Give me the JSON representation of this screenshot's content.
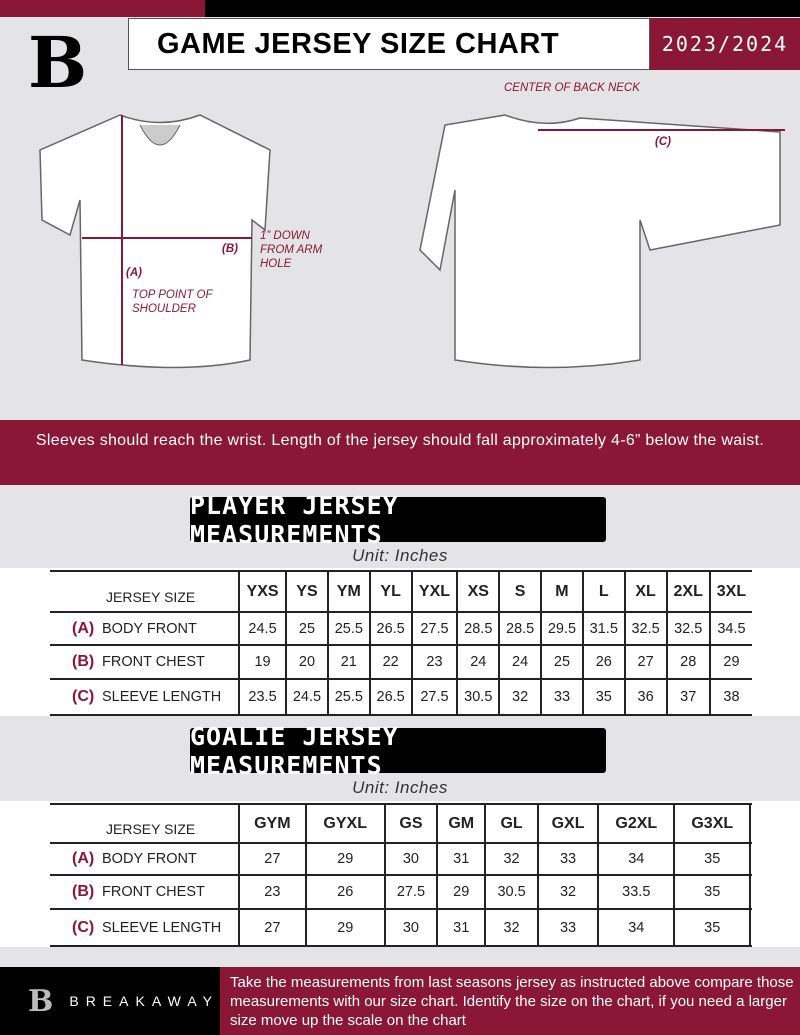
{
  "header": {
    "title": "GAME JERSEY SIZE CHART",
    "season": "2023/2024",
    "logo": "B"
  },
  "diagram": {
    "center_back_neck": "CENTER OF BACK NECK",
    "label_a": "(A)",
    "label_b": "(B)",
    "label_c": "(C)",
    "top_point": "TOP POINT OF SHOULDER",
    "down_from_arm": "1” DOWN FROM ARM HOLE"
  },
  "instruction_band": "Sleeves should reach the wrist. Length of the jersey should fall approximately 4-6” below the waist.",
  "player": {
    "title": "PLAYER JERSEY MEASUREMENTS",
    "unit": "Unit: Inches",
    "size_header": "JERSEY SIZE",
    "sizes": [
      "YXS",
      "YS",
      "YM",
      "YL",
      "YXL",
      "XS",
      "S",
      "M",
      "L",
      "XL",
      "2XL",
      "3XL"
    ],
    "rows": [
      {
        "code": "(A)",
        "label": "BODY FRONT",
        "values": [
          "24.5",
          "25",
          "25.5",
          "26.5",
          "27.5",
          "28.5",
          "28.5",
          "29.5",
          "31.5",
          "32.5",
          "32.5",
          "34.5"
        ]
      },
      {
        "code": "(B)",
        "label": "FRONT CHEST",
        "values": [
          "19",
          "20",
          "21",
          "22",
          "23",
          "24",
          "24",
          "25",
          "26",
          "27",
          "28",
          "29"
        ]
      },
      {
        "code": "(C)",
        "label": "SLEEVE LENGTH",
        "values": [
          "23.5",
          "24.5",
          "25.5",
          "26.5",
          "27.5",
          "30.5",
          "32",
          "33",
          "35",
          "36",
          "37",
          "38"
        ]
      }
    ]
  },
  "goalie": {
    "title": "GOALIE JERSEY MEASUREMENTS",
    "unit": "Unit: Inches",
    "size_header": "JERSEY SIZE",
    "sizes": [
      "GYM",
      "GYXL",
      "GS",
      "GM",
      "GL",
      "GXL",
      "G2XL",
      "G3XL",
      ""
    ],
    "rows": [
      {
        "code": "(A)",
        "label": "BODY FRONT",
        "values": [
          "27",
          "29",
          "30",
          "31",
          "32",
          "33",
          "34",
          "35",
          ""
        ]
      },
      {
        "code": "(B)",
        "label": "FRONT CHEST",
        "values": [
          "23",
          "26",
          "27.5",
          "29",
          "30.5",
          "32",
          "33.5",
          "35",
          ""
        ]
      },
      {
        "code": "(C)",
        "label": "SLEEVE LENGTH",
        "values": [
          "27",
          "29",
          "30",
          "31",
          "32",
          "33",
          "34",
          "35",
          ""
        ]
      }
    ]
  },
  "footer": {
    "brand": "BREAKAWAY",
    "text": "Take the measurements from last seasons jersey as instructed above compare those measurements  with our size chart. Identify the size on the chart, if you need a larger size move up the scale on the chart"
  },
  "colors": {
    "accent": "#8a1736",
    "dark": "#000000",
    "background": "#e4e4e6"
  }
}
